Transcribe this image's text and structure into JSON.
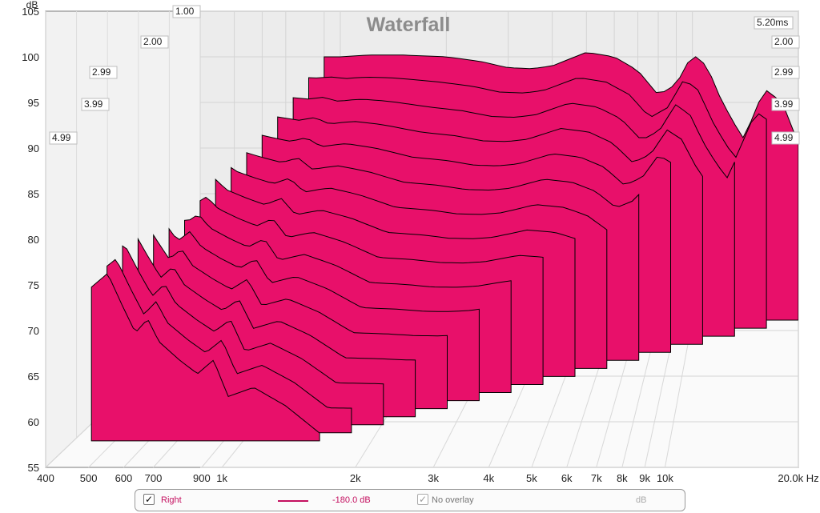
{
  "chart_data": {
    "type": "area",
    "title": "Waterfall",
    "ylabel": "dB",
    "xunit": "Hz",
    "ylim": [
      55,
      105
    ],
    "yticks": [
      55,
      60,
      65,
      70,
      75,
      80,
      85,
      90,
      95,
      100,
      105
    ],
    "xlim": [
      400,
      20000
    ],
    "xscale": "log",
    "xticks": [
      {
        "value": 400,
        "label": "400"
      },
      {
        "value": 500,
        "label": "500"
      },
      {
        "value": 600,
        "label": "600"
      },
      {
        "value": 700,
        "label": "700"
      },
      {
        "value": 900,
        "label": "900"
      },
      {
        "value": 1000,
        "label": "1k"
      },
      {
        "value": 2000,
        "label": "2k"
      },
      {
        "value": 3000,
        "label": "3k"
      },
      {
        "value": 4000,
        "label": "4k"
      },
      {
        "value": 5000,
        "label": "5k"
      },
      {
        "value": 6000,
        "label": "6k"
      },
      {
        "value": 7000,
        "label": "7k"
      },
      {
        "value": 8000,
        "label": "8k"
      },
      {
        "value": 9000,
        "label": "9k"
      },
      {
        "value": 10000,
        "label": "10k"
      },
      {
        "value": 20000,
        "label": "20.0k Hz"
      }
    ],
    "time_unit": "ms",
    "time_range": [
      0,
      5.2
    ],
    "time_labels_left": [
      "1.00",
      "2.00",
      "2.99",
      "3.99",
      "4.99"
    ],
    "time_labels_right": [
      "5.20ms",
      "2.00",
      "2.99",
      "3.99",
      "4.99"
    ],
    "fill_color": "#e8106a",
    "line_color": "#000000",
    "floor_db": 70,
    "num_slices": 16,
    "series": [
      {
        "time_ms": 0.0,
        "x": [
          900,
          1000,
          1200,
          1500,
          2000,
          2500,
          3000,
          3500,
          4000,
          5000,
          6000,
          7000,
          8000,
          9000,
          10000,
          11000,
          12000,
          13000,
          14000,
          16000,
          18000,
          20000
        ],
        "values": [
          100,
          100,
          100.2,
          100.2,
          100,
          99.5,
          98.8,
          98.7,
          99,
          100.5,
          100,
          98.5,
          95.8,
          97,
          100.3,
          99,
          95.5,
          93,
          91,
          96.5,
          95,
          90.5
        ]
      },
      {
        "time_ms": 4.99,
        "x": [
          450,
          500,
          550,
          600,
          650,
          700,
          800,
          900,
          1000,
          1100,
          1300,
          1600,
          2000
        ],
        "values": [
          88,
          89.5,
          86,
          83,
          84.5,
          82,
          80,
          78.5,
          80,
          76,
          77,
          75,
          72
        ]
      }
    ]
  },
  "legend": {
    "right_checked": "✓",
    "right_label": "Right",
    "right_value": "-180.0 dB",
    "overlay_checked": "✓",
    "overlay_label": "No overlay",
    "overlay_unit": "dB"
  }
}
